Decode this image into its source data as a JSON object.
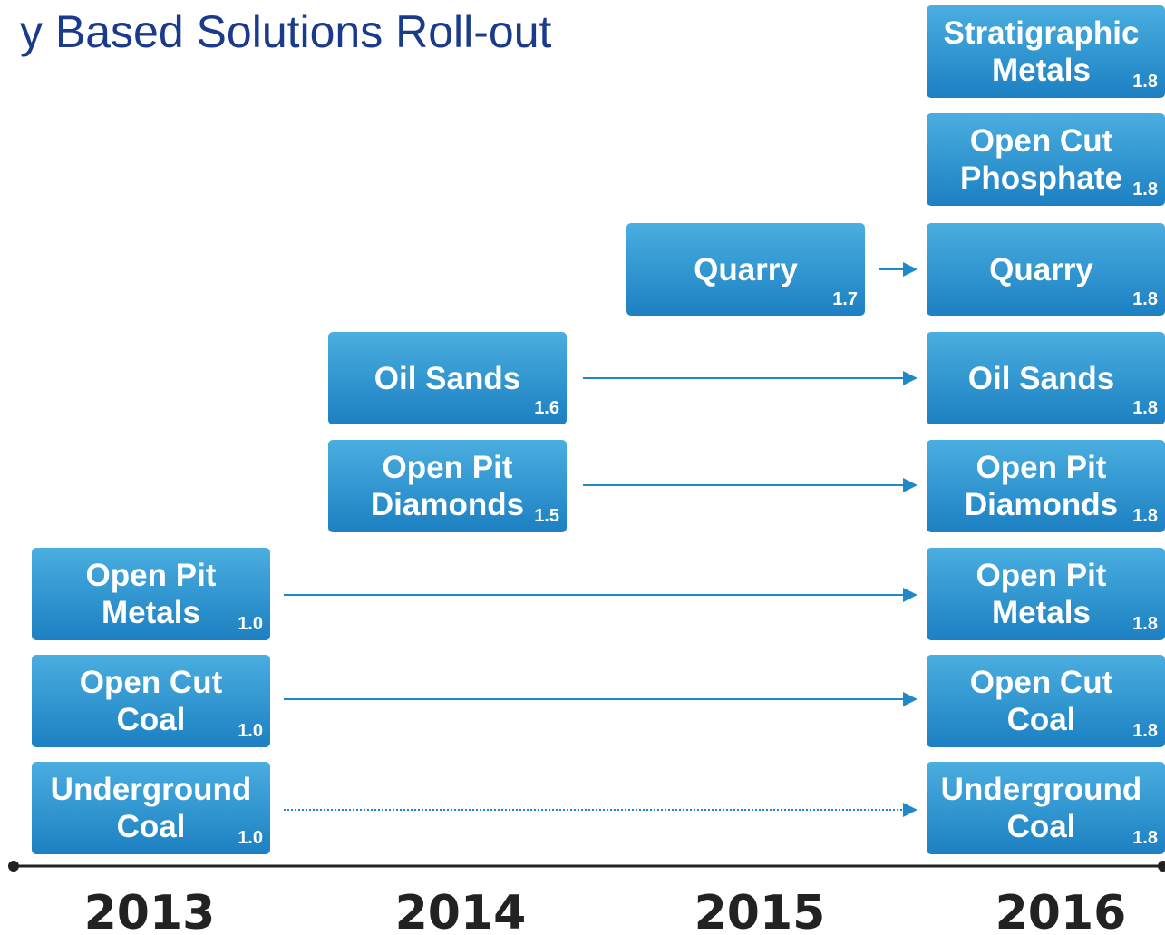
{
  "header": {
    "title": "y Based Solutions Roll-out"
  },
  "boxes": [
    {
      "lines": [
        "Stratigraphic",
        "Metals"
      ],
      "version": "1.8"
    },
    {
      "lines": [
        "Open Cut",
        "Phosphate"
      ],
      "version": "1.8"
    },
    {
      "lines": [
        "Quarry"
      ],
      "version": "1.7"
    },
    {
      "lines": [
        "Quarry"
      ],
      "version": "1.8"
    },
    {
      "lines": [
        "Oil Sands"
      ],
      "version": "1.6"
    },
    {
      "lines": [
        "Oil Sands"
      ],
      "version": "1.8"
    },
    {
      "lines": [
        "Open Pit",
        "Diamonds"
      ],
      "version": "1.5"
    },
    {
      "lines": [
        "Open Pit",
        "Diamonds"
      ],
      "version": "1.8"
    },
    {
      "lines": [
        "Open Pit",
        "Metals"
      ],
      "version": "1.0"
    },
    {
      "lines": [
        "Open Pit",
        "Metals"
      ],
      "version": "1.8"
    },
    {
      "lines": [
        "Open Cut",
        "Coal"
      ],
      "version": "1.0"
    },
    {
      "lines": [
        "Open Cut",
        "Coal"
      ],
      "version": "1.8"
    },
    {
      "lines": [
        "Underground",
        "Coal"
      ],
      "version": "1.0"
    },
    {
      "lines": [
        "Underground",
        "Coal"
      ],
      "version": "1.8"
    }
  ],
  "years": [
    "2013",
    "2014",
    "2015",
    "2016"
  ]
}
